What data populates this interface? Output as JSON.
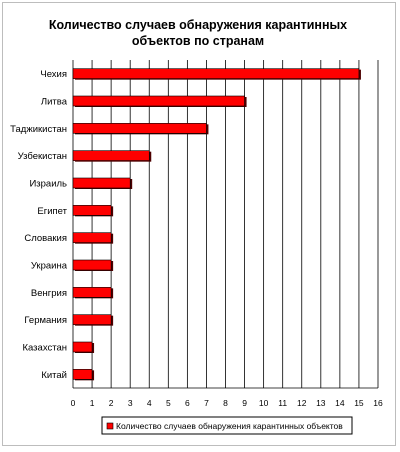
{
  "chart_data": {
    "type": "bar",
    "orientation": "horizontal",
    "title": "Количество случаев обнаружения карантинных объектов по странам",
    "title_lines": [
      "Количество случаев обнаружения карантинных",
      "объектов по странам"
    ],
    "categories": [
      "Чехия",
      "Литва",
      "Таджикистан",
      "Узбекистан",
      "Израиль",
      "Египет",
      "Словакия",
      "Украина",
      "Венгрия",
      "Германия",
      "Казахстан",
      "Китай"
    ],
    "series": [
      {
        "name": "Количество случаев обнаружения карантинных объектов",
        "values": [
          15,
          9,
          7,
          4,
          3,
          2,
          2,
          2,
          2,
          2,
          1,
          1
        ]
      }
    ],
    "xlim": [
      0,
      16
    ],
    "xticks": [
      0,
      1,
      2,
      3,
      4,
      5,
      6,
      7,
      8,
      9,
      10,
      11,
      12,
      13,
      14,
      15,
      16
    ],
    "grid": "vertical",
    "legend_position": "bottom",
    "colors": {
      "bar": "#ff0000",
      "bar_shadow": "#4d0000",
      "grid": "#000000"
    }
  }
}
